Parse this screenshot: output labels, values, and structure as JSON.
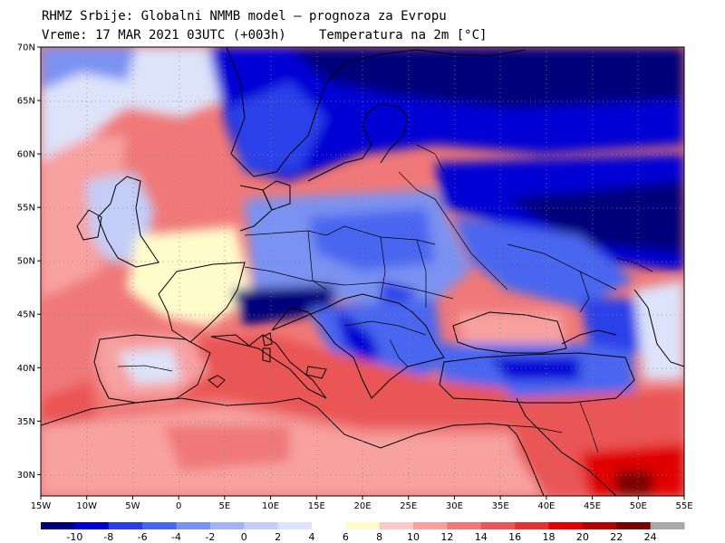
{
  "header": {
    "line1": "RHMZ Srbije: Globalni NMMB model — prognoza za Evropu",
    "line2_left": "Vreme: 17 MAR 2021 03UTC (+003h)",
    "line2_right": "Temperatura na 2m [°C]"
  },
  "map": {
    "lon_range": [
      -15,
      55
    ],
    "lat_range": [
      28,
      70
    ],
    "lat_labels": [
      "30N",
      "35N",
      "40N",
      "45N",
      "50N",
      "55N",
      "60N",
      "65N",
      "70N"
    ],
    "lon_labels": [
      "15W",
      "10W",
      "5W",
      "0",
      "5E",
      "10E",
      "15E",
      "20E",
      "25E",
      "30E",
      "35E",
      "40E",
      "45E",
      "50E",
      "55E"
    ],
    "land_outline_color": "#000000"
  },
  "colorbar": {
    "labels": [
      "-10",
      "-8",
      "-6",
      "-4",
      "-2",
      "0",
      "2",
      "4",
      "6",
      "8",
      "10",
      "12",
      "14",
      "16",
      "18",
      "20",
      "22",
      "24"
    ],
    "colors": [
      "#00007a",
      "#0000d4",
      "#2a3fe8",
      "#4a66f0",
      "#7a92f2",
      "#a3b4f5",
      "#c3cdf7",
      "#dde3fa",
      "#ffffff",
      "#fffccc",
      "#fcc9c9",
      "#f7a1a1",
      "#f07878",
      "#ea5555",
      "#e43030",
      "#e00000",
      "#b00000",
      "#7a0000",
      "#a8a8a8"
    ]
  }
}
